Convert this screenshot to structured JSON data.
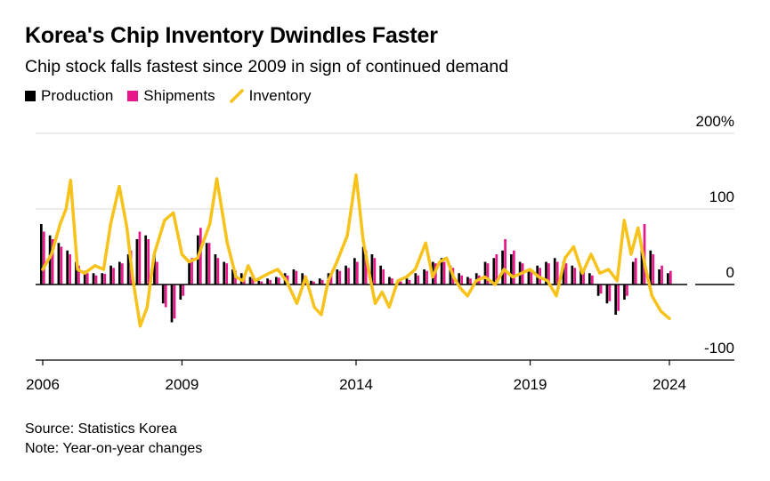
{
  "title": "Korea's Chip Inventory Dwindles Faster",
  "subtitle": "Chip stock falls fastest since 2009 in sign of continued demand",
  "legend": {
    "production": "Production",
    "shipments": "Shipments",
    "inventory": "Inventory"
  },
  "footer": {
    "source": "Source: Statistics Korea",
    "note": "Note: Year-on-year changes"
  },
  "colors": {
    "production": "#000000",
    "shipments": "#e8178a",
    "inventory": "#f7c21a",
    "grid": "#d9d9d9"
  },
  "chart_data": {
    "type": "bar+line",
    "title": "Korea's Chip Inventory Dwindles Faster",
    "subtitle": "Chip stock falls fastest since 2009 in sign of continued demand",
    "xlim": [
      2006,
      2024.5
    ],
    "ylim": [
      -100,
      200
    ],
    "y_ticks": [
      {
        "value": 200,
        "label": "200%"
      },
      {
        "value": 100,
        "label": "100"
      },
      {
        "value": 0,
        "label": "0"
      },
      {
        "value": -100,
        "label": "-100"
      }
    ],
    "x_ticks": [
      {
        "value": 2006,
        "label": "2006"
      },
      {
        "value": 2010,
        "label": "2009"
      },
      {
        "value": 2015,
        "label": "2014"
      },
      {
        "value": 2020,
        "label": "2019"
      },
      {
        "value": 2024,
        "label": "2024"
      }
    ],
    "grid": true,
    "legend_position": "top-left",
    "series": [
      {
        "name": "Production",
        "kind": "bar",
        "x": [
          2006.0,
          2006.25,
          2006.5,
          2006.75,
          2007.0,
          2007.25,
          2007.5,
          2007.75,
          2008.0,
          2008.25,
          2008.5,
          2008.75,
          2009.0,
          2009.25,
          2009.5,
          2009.75,
          2010.0,
          2010.25,
          2010.5,
          2010.75,
          2011.0,
          2011.25,
          2011.5,
          2011.75,
          2012.0,
          2012.25,
          2012.5,
          2012.75,
          2013.0,
          2013.25,
          2013.5,
          2013.75,
          2014.0,
          2014.25,
          2014.5,
          2014.75,
          2015.0,
          2015.25,
          2015.5,
          2015.75,
          2016.0,
          2016.25,
          2016.5,
          2016.75,
          2017.0,
          2017.25,
          2017.5,
          2017.75,
          2018.0,
          2018.25,
          2018.5,
          2018.75,
          2019.0,
          2019.25,
          2019.5,
          2019.75,
          2020.0,
          2020.25,
          2020.5,
          2020.75,
          2021.0,
          2021.25,
          2021.5,
          2021.75,
          2022.0,
          2022.25,
          2022.5,
          2022.75,
          2023.0,
          2023.25,
          2023.5,
          2023.75,
          2024.0
        ],
        "values": [
          80,
          65,
          55,
          45,
          30,
          18,
          15,
          15,
          25,
          30,
          40,
          60,
          65,
          40,
          -25,
          -50,
          -20,
          30,
          65,
          55,
          40,
          30,
          20,
          15,
          10,
          5,
          8,
          10,
          15,
          20,
          15,
          5,
          8,
          15,
          20,
          25,
          35,
          50,
          40,
          25,
          10,
          5,
          8,
          15,
          20,
          30,
          35,
          25,
          15,
          10,
          15,
          30,
          35,
          45,
          40,
          30,
          20,
          25,
          30,
          35,
          30,
          25,
          20,
          15,
          -15,
          -25,
          -40,
          -20,
          30,
          50,
          45,
          20,
          15
        ]
      },
      {
        "name": "Shipments",
        "kind": "bar",
        "x": [
          2006.0,
          2006.25,
          2006.5,
          2006.75,
          2007.0,
          2007.25,
          2007.5,
          2007.75,
          2008.0,
          2008.25,
          2008.5,
          2008.75,
          2009.0,
          2009.25,
          2009.5,
          2009.75,
          2010.0,
          2010.25,
          2010.5,
          2010.75,
          2011.0,
          2011.25,
          2011.5,
          2011.75,
          2012.0,
          2012.25,
          2012.5,
          2012.75,
          2013.0,
          2013.25,
          2013.5,
          2013.75,
          2014.0,
          2014.25,
          2014.5,
          2014.75,
          2015.0,
          2015.25,
          2015.5,
          2015.75,
          2016.0,
          2016.25,
          2016.5,
          2016.75,
          2017.0,
          2017.25,
          2017.5,
          2017.75,
          2018.0,
          2018.25,
          2018.5,
          2018.75,
          2019.0,
          2019.25,
          2019.5,
          2019.75,
          2020.0,
          2020.25,
          2020.5,
          2020.75,
          2021.0,
          2021.25,
          2021.5,
          2021.75,
          2022.0,
          2022.25,
          2022.5,
          2022.75,
          2023.0,
          2023.25,
          2023.5,
          2023.75,
          2024.0
        ],
        "values": [
          70,
          60,
          50,
          40,
          25,
          15,
          12,
          14,
          22,
          28,
          45,
          70,
          60,
          30,
          -30,
          -45,
          -15,
          35,
          75,
          55,
          35,
          28,
          18,
          12,
          8,
          4,
          6,
          9,
          12,
          18,
          12,
          4,
          6,
          12,
          18,
          22,
          30,
          45,
          35,
          20,
          8,
          4,
          6,
          12,
          18,
          28,
          30,
          22,
          12,
          8,
          12,
          28,
          40,
          60,
          45,
          28,
          18,
          22,
          28,
          30,
          28,
          22,
          18,
          12,
          -12,
          -22,
          -35,
          -15,
          35,
          80,
          40,
          25,
          18
        ]
      },
      {
        "name": "Inventory",
        "kind": "line",
        "x": [
          2006.0,
          2006.25,
          2006.5,
          2006.67,
          2006.8,
          2007.0,
          2007.2,
          2007.5,
          2007.75,
          2007.95,
          2008.2,
          2008.42,
          2008.58,
          2008.8,
          2009.0,
          2009.2,
          2009.5,
          2009.75,
          2010.0,
          2010.2,
          2010.45,
          2010.6,
          2010.8,
          2011.0,
          2011.3,
          2011.55,
          2011.75,
          2011.9,
          2012.1,
          2012.3,
          2012.5,
          2012.75,
          2013.0,
          2013.3,
          2013.55,
          2013.8,
          2014.0,
          2014.2,
          2014.45,
          2014.75,
          2015.0,
          2015.2,
          2015.4,
          2015.55,
          2015.75,
          2015.95,
          2016.2,
          2016.45,
          2016.7,
          2017.0,
          2017.2,
          2017.4,
          2017.6,
          2017.8,
          2018.0,
          2018.2,
          2018.45,
          2018.7,
          2019.0,
          2019.25,
          2019.5,
          2019.75,
          2020.0,
          2020.25,
          2020.5,
          2020.75,
          2021.0,
          2021.25,
          2021.5,
          2021.75,
          2022.0,
          2022.25,
          2022.5,
          2022.7,
          2022.9,
          2023.1,
          2023.3,
          2023.5,
          2023.75,
          2024.0
        ],
        "values": [
          20,
          40,
          80,
          100,
          138,
          20,
          15,
          25,
          20,
          80,
          130,
          75,
          10,
          -55,
          -30,
          40,
          85,
          95,
          40,
          30,
          35,
          55,
          80,
          140,
          55,
          10,
          5,
          25,
          5,
          10,
          15,
          20,
          5,
          -25,
          10,
          -30,
          -40,
          5,
          30,
          65,
          145,
          60,
          10,
          -25,
          -10,
          -30,
          5,
          10,
          20,
          55,
          10,
          30,
          35,
          10,
          -5,
          -15,
          5,
          10,
          0,
          20,
          10,
          15,
          20,
          10,
          5,
          -15,
          35,
          50,
          15,
          40,
          15,
          20,
          5,
          85,
          40,
          75,
          25,
          -15,
          -35,
          -45
        ]
      }
    ]
  }
}
